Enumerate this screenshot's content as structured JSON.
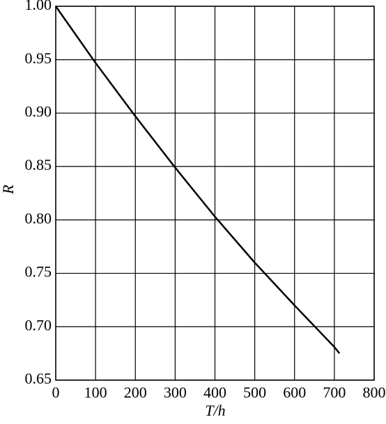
{
  "chart_data": {
    "type": "line",
    "x_label": "T/h",
    "y_label": "R",
    "x": [
      0,
      100,
      200,
      300,
      400,
      500,
      600,
      700,
      713
    ],
    "series": [
      {
        "color": "#000000",
        "values": [
          1.0,
          0.947,
          0.897,
          0.849,
          0.803,
          0.76,
          0.72,
          0.681,
          0.675
        ]
      }
    ],
    "xlim": [
      0,
      800
    ],
    "xticks": [
      0,
      100,
      200,
      300,
      400,
      500,
      600,
      700,
      800
    ],
    "ylim": [
      0.65,
      1.0
    ],
    "yticks": [
      0.65,
      {
        "value": 0.7,
        "label": "0.70"
      },
      0.75,
      {
        "value": 0.8,
        "label": "0.80"
      },
      0.85,
      {
        "value": 0.9,
        "label": "0.90"
      },
      0.95,
      {
        "value": 1.0,
        "label": "1.00"
      }
    ],
    "grid": true
  }
}
